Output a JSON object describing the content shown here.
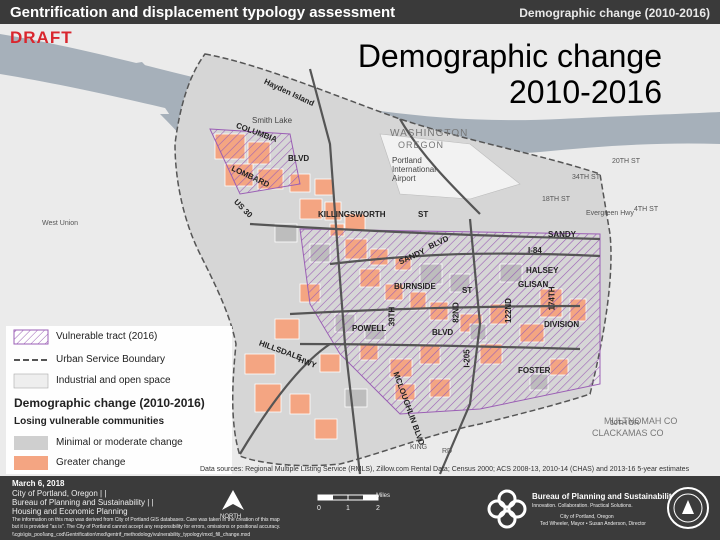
{
  "header": {
    "title": "Gentrification and displacement typology assessment",
    "subtitle": "Demographic change (2010-2016)"
  },
  "draft_label": "DRAFT",
  "overlay_title": "Demographic change 2010-2016",
  "map_labels": {
    "hayden_island": "Hayden Island",
    "columbia": "COLUMBIA",
    "smith_lake": "Smith Lake",
    "blvd": "BLVD",
    "portland_airport": "Portland International Airport",
    "lombard": "LOMBARD",
    "us30": "US 30",
    "killingsworth": "KILLINGSWORTH",
    "st": "ST",
    "sandy": "SANDY",
    "sandy2": "SANDY",
    "blvd2": "BLVD",
    "i84": "I-84",
    "halsey": "HALSEY",
    "glisan": "GLISAN",
    "burnside": "BURNSIDE",
    "st2": "ST",
    "division": "DIVISION",
    "powell": "POWELL",
    "blvd3": "BLVD",
    "hillsdale": "HILLSDALE",
    "hwy": "HWY",
    "foster": "FOSTER",
    "mcloughlin": "MCLOUGHLIN BLVD",
    "n39th": "39TH",
    "n82nd": "82ND",
    "n122nd": "122ND",
    "n174th": "174TH",
    "n205": "I-205",
    "washington": "WASHINGTON",
    "oregon": "OREGON",
    "multnomah": "MULTNOMAH CO",
    "clackamas": "CLACKAMAS CO",
    "west_union": "West Union",
    "king": "KING",
    "rd": "RD",
    "n34th": "34TH ST",
    "n18th": "18TH ST",
    "n20th": "20TH ST",
    "fourth": "4TH ST",
    "tenth": "10TH DR",
    "evergreen": "Evergreen Hwy"
  },
  "legend": {
    "items": [
      {
        "key": "vulnerable",
        "label": "Vulnerable tract (2016)"
      },
      {
        "key": "usb",
        "label": "Urban Service Boundary"
      },
      {
        "key": "industrial",
        "label": "Industrial and open space"
      }
    ],
    "heading": "Demographic change (2010-2016)",
    "subheading": "Losing vulnerable communities",
    "classes": [
      {
        "key": "minimal",
        "label": "Minimal or moderate change",
        "color": "#cfcfcf"
      },
      {
        "key": "greater",
        "label": "Greater change",
        "color": "#f4a582"
      }
    ]
  },
  "credit": "Data sources: Regional Multiple Listing Service (RMLS), Zillow.com Rental Data; Census 2000; ACS 2008-13, 2010-14 (CHAS) and 2013-16 5-year estimates",
  "footer": {
    "date": "March 6, 2018",
    "org1": "City of Portland, Oregon | |",
    "org2": "Bureau of Planning and Sustainability | |",
    "org3": "Housing and Economic Planning",
    "disclaimer1": "The information on this map was derived from City of Portland GIS databases. Care was taken in the creation of this map",
    "disclaimer2": "but it is provided \"as is\". The City of Portland cannot accept any responsibility for errors, omissions or positional accuracy.",
    "path": "\\\\cgis\\gis_pool\\ang_cod\\Gentrification\\mxd\\gentrif_methodology\\vulnerability_typology\\mxd_fill_change.mxd",
    "north": "NORTH",
    "scale_unit": "Miles",
    "scale_ticks": [
      "0",
      "1",
      "2"
    ],
    "bureau": "Bureau of Planning and Sustainability",
    "bureau_tag": "Innovation. Collaboration. Practical Solutions.",
    "city_line1": "City of Portland, Oregon",
    "city_line2": "Ted Wheeler, Mayor  •  Susan Anderson, Director"
  },
  "colors": {
    "vulnerable_hatch": "#9b5fb5",
    "greater_change": "#f4a582",
    "minimal_change": "#cfcfcf",
    "river": "#9aa6b2",
    "header_bg": "#3a3a3a",
    "draft": "#d9262e"
  }
}
